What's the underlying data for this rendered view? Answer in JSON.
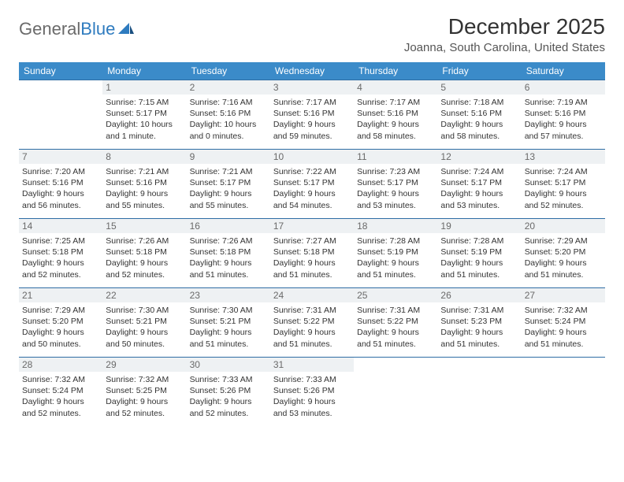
{
  "brand": {
    "name_gray": "General",
    "name_blue": "Blue"
  },
  "title": "December 2025",
  "location": "Joanna, South Carolina, United States",
  "colors": {
    "header_bg": "#3b8bc9",
    "header_text": "#ffffff",
    "daynum_bg": "#eef1f3",
    "daynum_text": "#6a6a6a",
    "border": "#2e6da4",
    "text": "#333333",
    "brand_gray": "#6a6a6a",
    "brand_blue": "#2e7bbf"
  },
  "weekdays": [
    "Sunday",
    "Monday",
    "Tuesday",
    "Wednesday",
    "Thursday",
    "Friday",
    "Saturday"
  ],
  "weeks": [
    [
      null,
      {
        "n": "1",
        "sr": "Sunrise: 7:15 AM",
        "ss": "Sunset: 5:17 PM",
        "d1": "Daylight: 10 hours",
        "d2": "and 1 minute."
      },
      {
        "n": "2",
        "sr": "Sunrise: 7:16 AM",
        "ss": "Sunset: 5:16 PM",
        "d1": "Daylight: 10 hours",
        "d2": "and 0 minutes."
      },
      {
        "n": "3",
        "sr": "Sunrise: 7:17 AM",
        "ss": "Sunset: 5:16 PM",
        "d1": "Daylight: 9 hours",
        "d2": "and 59 minutes."
      },
      {
        "n": "4",
        "sr": "Sunrise: 7:17 AM",
        "ss": "Sunset: 5:16 PM",
        "d1": "Daylight: 9 hours",
        "d2": "and 58 minutes."
      },
      {
        "n": "5",
        "sr": "Sunrise: 7:18 AM",
        "ss": "Sunset: 5:16 PM",
        "d1": "Daylight: 9 hours",
        "d2": "and 58 minutes."
      },
      {
        "n": "6",
        "sr": "Sunrise: 7:19 AM",
        "ss": "Sunset: 5:16 PM",
        "d1": "Daylight: 9 hours",
        "d2": "and 57 minutes."
      }
    ],
    [
      {
        "n": "7",
        "sr": "Sunrise: 7:20 AM",
        "ss": "Sunset: 5:16 PM",
        "d1": "Daylight: 9 hours",
        "d2": "and 56 minutes."
      },
      {
        "n": "8",
        "sr": "Sunrise: 7:21 AM",
        "ss": "Sunset: 5:16 PM",
        "d1": "Daylight: 9 hours",
        "d2": "and 55 minutes."
      },
      {
        "n": "9",
        "sr": "Sunrise: 7:21 AM",
        "ss": "Sunset: 5:17 PM",
        "d1": "Daylight: 9 hours",
        "d2": "and 55 minutes."
      },
      {
        "n": "10",
        "sr": "Sunrise: 7:22 AM",
        "ss": "Sunset: 5:17 PM",
        "d1": "Daylight: 9 hours",
        "d2": "and 54 minutes."
      },
      {
        "n": "11",
        "sr": "Sunrise: 7:23 AM",
        "ss": "Sunset: 5:17 PM",
        "d1": "Daylight: 9 hours",
        "d2": "and 53 minutes."
      },
      {
        "n": "12",
        "sr": "Sunrise: 7:24 AM",
        "ss": "Sunset: 5:17 PM",
        "d1": "Daylight: 9 hours",
        "d2": "and 53 minutes."
      },
      {
        "n": "13",
        "sr": "Sunrise: 7:24 AM",
        "ss": "Sunset: 5:17 PM",
        "d1": "Daylight: 9 hours",
        "d2": "and 52 minutes."
      }
    ],
    [
      {
        "n": "14",
        "sr": "Sunrise: 7:25 AM",
        "ss": "Sunset: 5:18 PM",
        "d1": "Daylight: 9 hours",
        "d2": "and 52 minutes."
      },
      {
        "n": "15",
        "sr": "Sunrise: 7:26 AM",
        "ss": "Sunset: 5:18 PM",
        "d1": "Daylight: 9 hours",
        "d2": "and 52 minutes."
      },
      {
        "n": "16",
        "sr": "Sunrise: 7:26 AM",
        "ss": "Sunset: 5:18 PM",
        "d1": "Daylight: 9 hours",
        "d2": "and 51 minutes."
      },
      {
        "n": "17",
        "sr": "Sunrise: 7:27 AM",
        "ss": "Sunset: 5:18 PM",
        "d1": "Daylight: 9 hours",
        "d2": "and 51 minutes."
      },
      {
        "n": "18",
        "sr": "Sunrise: 7:28 AM",
        "ss": "Sunset: 5:19 PM",
        "d1": "Daylight: 9 hours",
        "d2": "and 51 minutes."
      },
      {
        "n": "19",
        "sr": "Sunrise: 7:28 AM",
        "ss": "Sunset: 5:19 PM",
        "d1": "Daylight: 9 hours",
        "d2": "and 51 minutes."
      },
      {
        "n": "20",
        "sr": "Sunrise: 7:29 AM",
        "ss": "Sunset: 5:20 PM",
        "d1": "Daylight: 9 hours",
        "d2": "and 51 minutes."
      }
    ],
    [
      {
        "n": "21",
        "sr": "Sunrise: 7:29 AM",
        "ss": "Sunset: 5:20 PM",
        "d1": "Daylight: 9 hours",
        "d2": "and 50 minutes."
      },
      {
        "n": "22",
        "sr": "Sunrise: 7:30 AM",
        "ss": "Sunset: 5:21 PM",
        "d1": "Daylight: 9 hours",
        "d2": "and 50 minutes."
      },
      {
        "n": "23",
        "sr": "Sunrise: 7:30 AM",
        "ss": "Sunset: 5:21 PM",
        "d1": "Daylight: 9 hours",
        "d2": "and 51 minutes."
      },
      {
        "n": "24",
        "sr": "Sunrise: 7:31 AM",
        "ss": "Sunset: 5:22 PM",
        "d1": "Daylight: 9 hours",
        "d2": "and 51 minutes."
      },
      {
        "n": "25",
        "sr": "Sunrise: 7:31 AM",
        "ss": "Sunset: 5:22 PM",
        "d1": "Daylight: 9 hours",
        "d2": "and 51 minutes."
      },
      {
        "n": "26",
        "sr": "Sunrise: 7:31 AM",
        "ss": "Sunset: 5:23 PM",
        "d1": "Daylight: 9 hours",
        "d2": "and 51 minutes."
      },
      {
        "n": "27",
        "sr": "Sunrise: 7:32 AM",
        "ss": "Sunset: 5:24 PM",
        "d1": "Daylight: 9 hours",
        "d2": "and 51 minutes."
      }
    ],
    [
      {
        "n": "28",
        "sr": "Sunrise: 7:32 AM",
        "ss": "Sunset: 5:24 PM",
        "d1": "Daylight: 9 hours",
        "d2": "and 52 minutes."
      },
      {
        "n": "29",
        "sr": "Sunrise: 7:32 AM",
        "ss": "Sunset: 5:25 PM",
        "d1": "Daylight: 9 hours",
        "d2": "and 52 minutes."
      },
      {
        "n": "30",
        "sr": "Sunrise: 7:33 AM",
        "ss": "Sunset: 5:26 PM",
        "d1": "Daylight: 9 hours",
        "d2": "and 52 minutes."
      },
      {
        "n": "31",
        "sr": "Sunrise: 7:33 AM",
        "ss": "Sunset: 5:26 PM",
        "d1": "Daylight: 9 hours",
        "d2": "and 53 minutes."
      },
      null,
      null,
      null
    ]
  ]
}
